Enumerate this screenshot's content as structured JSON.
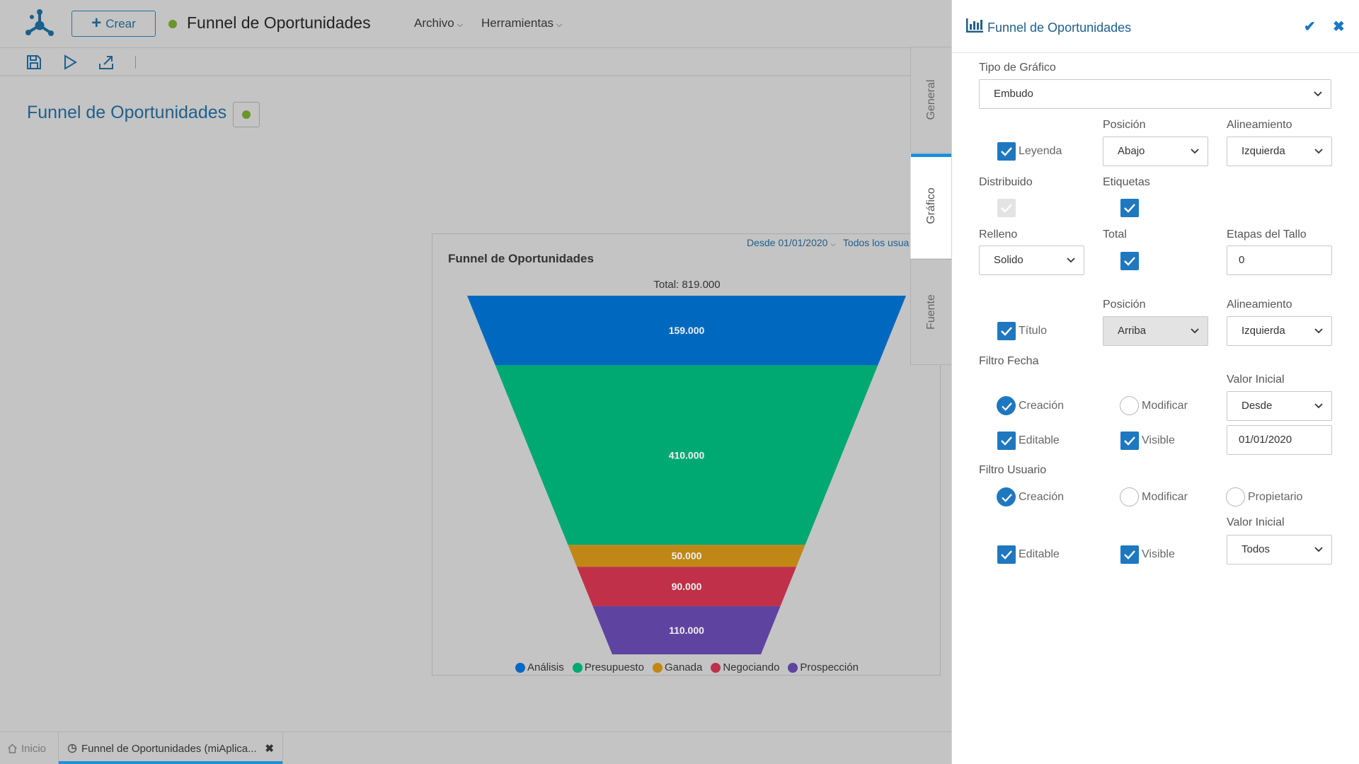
{
  "app": {
    "crear_label": "Crear",
    "title": "Funnel de Oportunidades",
    "menus": [
      "Archivo",
      "Herramientas"
    ]
  },
  "toolbar": {
    "icons": [
      "save-icon",
      "play-icon",
      "export-icon"
    ]
  },
  "page": {
    "title": "Funnel de Oportunidades"
  },
  "chart_card": {
    "filter_date": "Desde 01/01/2020",
    "filter_user": "Todos los usua"
  },
  "chart_data": {
    "type": "funnel",
    "title": "Funnel de Oportunidades",
    "total_label": "Total: 819.000",
    "total": 819000,
    "stages": [
      {
        "name": "Análisis",
        "value": 159000,
        "label": "159.000",
        "color": "#0069bf"
      },
      {
        "name": "Presupuesto",
        "value": 410000,
        "label": "410.000",
        "color": "#00a872"
      },
      {
        "name": "Ganada",
        "value": 50000,
        "label": "50.000",
        "color": "#c08716"
      },
      {
        "name": "Negociando",
        "value": 90000,
        "label": "90.000",
        "color": "#c03048"
      },
      {
        "name": "Prospección",
        "value": 110000,
        "label": "110.000",
        "color": "#5e43a0"
      }
    ],
    "legend_position": "bottom"
  },
  "side_tabs": {
    "general": "General",
    "grafico": "Gráfico",
    "fuente": "Fuente",
    "active": "Gráfico"
  },
  "panel": {
    "title": "Funnel de Oportunidades",
    "tipo_label": "Tipo de Gráfico",
    "tipo_value": "Embudo",
    "posicion_label": "Posición",
    "alineamiento_label": "Alineamiento",
    "leyenda_label": "Leyenda",
    "leyenda_checked": true,
    "leyenda_posicion": "Abajo",
    "leyenda_alineamiento": "Izquierda",
    "distribuido_label": "Distribuido",
    "distribuido_checked": true,
    "etiquetas_label": "Etiquetas",
    "etiquetas_checked": true,
    "relleno_label": "Relleno",
    "relleno_value": "Solido",
    "total_label": "Total",
    "total_checked": true,
    "etapas_label": "Etapas del Tallo",
    "etapas_value": "0",
    "posicion2_label": "Posición",
    "alineamiento2_label": "Alineamiento",
    "titulo_label": "Título",
    "titulo_checked": true,
    "titulo_posicion": "Arriba",
    "titulo_alineamiento": "Izquierda",
    "filtro_fecha_label": "Filtro Fecha",
    "valor_inicial_label": "Valor Inicial",
    "fecha_creacion_label": "Creación",
    "fecha_modificar_label": "Modificar",
    "fecha_valor_select": "Desde",
    "fecha_editable_label": "Editable",
    "fecha_visible_label": "Visible",
    "fecha_valor_input": "01/01/2020",
    "filtro_usuario_label": "Filtro Usuario",
    "usuario_creacion_label": "Creación",
    "usuario_modificar_label": "Modificar",
    "usuario_propietario_label": "Propietario",
    "valor_inicial2_label": "Valor Inicial",
    "usuario_editable_label": "Editable",
    "usuario_visible_label": "Visible",
    "usuario_valor_select": "Todos"
  },
  "bottom_tabs": {
    "inicio": "Inicio",
    "active_tab": "Funnel de Oportunidades (miAplica..."
  }
}
